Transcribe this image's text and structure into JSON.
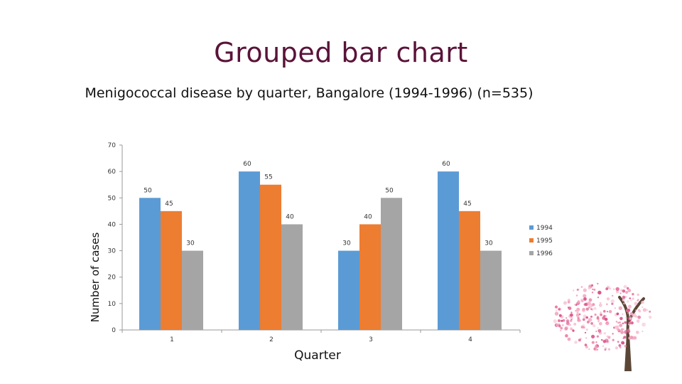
{
  "slide_title": "Grouped bar chart",
  "colors": {
    "title": "#5a1339",
    "series": [
      "#5b9bd5",
      "#ed7d31",
      "#a5a5a5"
    ],
    "axis": "#999999",
    "tree_blossom": [
      "#e8799e",
      "#f4a6c0",
      "#d94f87",
      "#f7c4d6"
    ],
    "tree_trunk": "#5b4636"
  },
  "tree_icon": "cherry-blossom-tree",
  "chart_data": {
    "type": "bar",
    "title": "Menigococcal disease by quarter, Bangalore (1994-1996) (n=535)",
    "xlabel": "Quarter",
    "ylabel": "Number of cases",
    "categories": [
      "1",
      "2",
      "3",
      "4"
    ],
    "series": [
      {
        "name": "1994",
        "values": [
          50,
          60,
          30,
          60
        ]
      },
      {
        "name": "1995",
        "values": [
          45,
          55,
          40,
          45
        ]
      },
      {
        "name": "1996",
        "values": [
          30,
          40,
          50,
          30
        ]
      }
    ],
    "ylim": [
      0,
      70
    ],
    "yticks": [
      0,
      10,
      20,
      30,
      40,
      50,
      60,
      70
    ],
    "grid": false,
    "legend": "right"
  }
}
